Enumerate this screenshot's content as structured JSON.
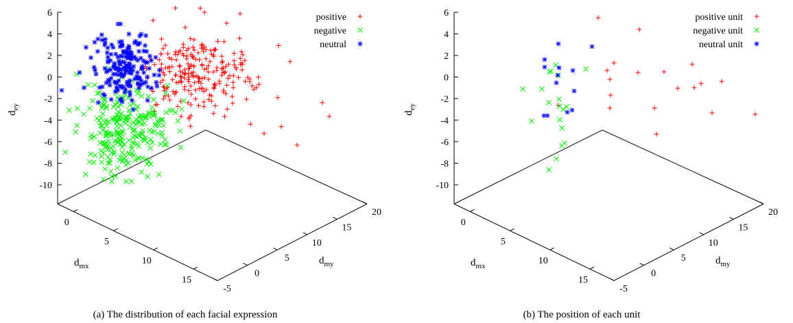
{
  "chart_data": [
    {
      "type": "scatter",
      "projection": "3d",
      "caption": "(a) The distribution of each facial expression",
      "axes": {
        "x": {
          "label_main": "d",
          "label_sub": "mx",
          "ticks": [
            "0",
            "5",
            "10",
            "15"
          ],
          "range": [
            -2,
            18
          ]
        },
        "y": {
          "label_main": "d",
          "label_sub": "my",
          "ticks": [
            "-5",
            "0",
            "5",
            "10",
            "15",
            "20"
          ],
          "range": [
            -5,
            20
          ]
        },
        "z": {
          "label_main": "d",
          "label_sub": "ey",
          "ticks": [
            "6",
            "4",
            "2",
            "0",
            "-2",
            "-4",
            "-6",
            "-8",
            "-10"
          ],
          "range": [
            -12,
            6
          ]
        }
      },
      "legend_position": "top-right",
      "series": [
        {
          "name": "positive",
          "color": "#ff0000",
          "marker": "plus",
          "points_screen_approx": "see script"
        },
        {
          "name": "negative",
          "color": "#00ee00",
          "marker": "cross"
        },
        {
          "name": "neutral",
          "color": "#0000ff",
          "marker": "star"
        }
      ]
    },
    {
      "type": "scatter",
      "projection": "3d",
      "caption": "(b) The position of each unit",
      "axes": {
        "x": {
          "label_main": "d",
          "label_sub": "mx",
          "ticks": [
            "0",
            "5",
            "10",
            "15"
          ],
          "range": [
            -2,
            18
          ]
        },
        "y": {
          "label_main": "d",
          "label_sub": "my",
          "ticks": [
            "-5",
            "0",
            "5",
            "10",
            "15",
            "20"
          ],
          "range": [
            -5,
            20
          ]
        },
        "z": {
          "label_main": "d",
          "label_sub": "ey",
          "ticks": [
            "6",
            "4",
            "2",
            "0",
            "-2",
            "-4",
            "-6",
            "-8",
            "-10"
          ],
          "range": [
            -12,
            6
          ]
        }
      },
      "legend_position": "top-right",
      "series": [
        {
          "name": "positive unit",
          "color": "#ff0000",
          "marker": "plus"
        },
        {
          "name": "negative unit",
          "color": "#00ee00",
          "marker": "cross"
        },
        {
          "name": "neutral unit",
          "color": "#0000ff",
          "marker": "star"
        }
      ]
    }
  ]
}
